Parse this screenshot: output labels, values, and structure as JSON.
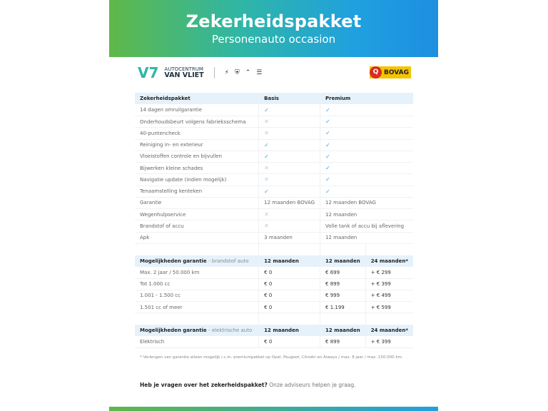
{
  "banner": {
    "title": "Zekerheidspakket",
    "subtitle": "Personenauto occasion"
  },
  "logos": {
    "dealer_line1": "AUTOCENTRUM",
    "dealer_line2": "VAN VLIET",
    "brands": [
      "OPEL",
      "Peugeot",
      "Citroën",
      "Aiways"
    ],
    "bovag": "BOVAG"
  },
  "colors": {
    "check": "#3aa3d8",
    "header_bg": "#e6f2fb",
    "gradient_start": "#5fb848",
    "gradient_end": "#1e8fe0"
  },
  "packages": {
    "headers": [
      "Zekerheidspakket",
      "Basis",
      "Premium"
    ],
    "rows": [
      [
        "14 dagen omruilgarantie",
        "check",
        "check"
      ],
      [
        "Onderhoudsbeurt volgens fabrieksschema",
        "cross",
        "check"
      ],
      [
        "40-puntencheck",
        "cross",
        "check"
      ],
      [
        "Reiniging in- en exterieur",
        "check",
        "check"
      ],
      [
        "Vloeistoffen controle en bijvullen",
        "check",
        "check"
      ],
      [
        "Bijwerken kleine schades",
        "cross",
        "check"
      ],
      [
        "Navigatie update (indien mogelijk)",
        "cross",
        "check"
      ],
      [
        "Tenaamstelling kenteken",
        "check",
        "check"
      ],
      [
        "Garantie",
        "12 maanden BOVAG",
        "12 maanden BOVAG"
      ],
      [
        "Wegenhulpservice",
        "cross",
        "12 maanden"
      ],
      [
        "Brandstof of accu",
        "cross",
        "Volle tank of accu bij aflevering"
      ],
      [
        "Apk",
        "3 maanden",
        "12 maanden"
      ]
    ]
  },
  "fuel": {
    "title": "Mogelijkheden garantie",
    "sub": "- brandstof auto",
    "headers": [
      "12 maanden",
      "12 maanden",
      "24 maanden*"
    ],
    "rows": [
      [
        "Max. 2 jaar / 50.000 km",
        "€ 0",
        "€ 699",
        "+ € 299"
      ],
      [
        "Tot 1.000 cc",
        "€ 0",
        "€ 899",
        "+ € 399"
      ],
      [
        "1.001 - 1.500 cc",
        "€ 0",
        "€ 999",
        "+ € 499"
      ],
      [
        "1.501 cc of meer",
        "€ 0",
        "€ 1.199",
        "+ € 599"
      ]
    ]
  },
  "electric": {
    "title": "Mogelijkheden garantie",
    "sub": "- elektrische auto",
    "headers": [
      "12 maanden",
      "12 maanden",
      "24 maanden*"
    ],
    "rows": [
      [
        "Elektrisch",
        "€ 0",
        "€ 899",
        "+ € 399"
      ]
    ]
  },
  "footnote": "* Verlengen van garantie alleen mogelijk i.c.m. premiumpakket op Opel, Peugeot, Citroën en Aiways / max. 8 jaar / max. 150.000 km.",
  "question": {
    "bold": "Heb je vragen over het zekerheidspakket?",
    "rest": " Onze adviseurs helpen je graag."
  }
}
